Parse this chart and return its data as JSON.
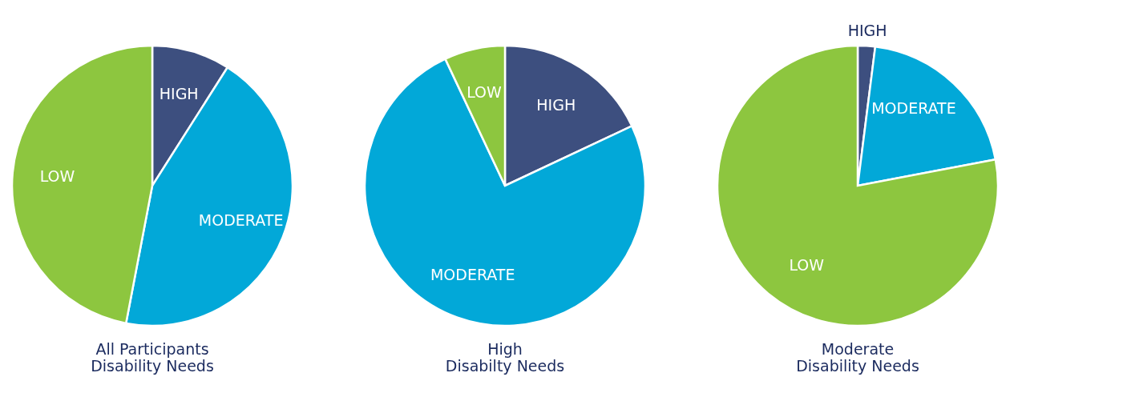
{
  "chart_data": [
    {
      "type": "pie",
      "title": "All Participants\nDisability Needs",
      "categories": [
        "HIGH",
        "MODERATE",
        "LOW"
      ],
      "values": [
        9,
        44,
        47
      ],
      "colors": [
        "#3d4f7f",
        "#02a8d8",
        "#8dc63f"
      ],
      "legend": false
    },
    {
      "type": "pie",
      "title": "High\nDisabilty Needs",
      "categories": [
        "HIGH",
        "MODERATE",
        "LOW"
      ],
      "values": [
        18,
        75,
        7
      ],
      "colors": [
        "#3d4f7f",
        "#02a8d8",
        "#8dc63f"
      ],
      "legend": false
    },
    {
      "type": "pie",
      "title": "Moderate\nDisability Needs",
      "categories": [
        "HIGH",
        "MODERATE",
        "LOW"
      ],
      "values": [
        2,
        20,
        78
      ],
      "colors": [
        "#3d4f7f",
        "#02a8d8",
        "#8dc63f"
      ],
      "legend": false
    }
  ]
}
